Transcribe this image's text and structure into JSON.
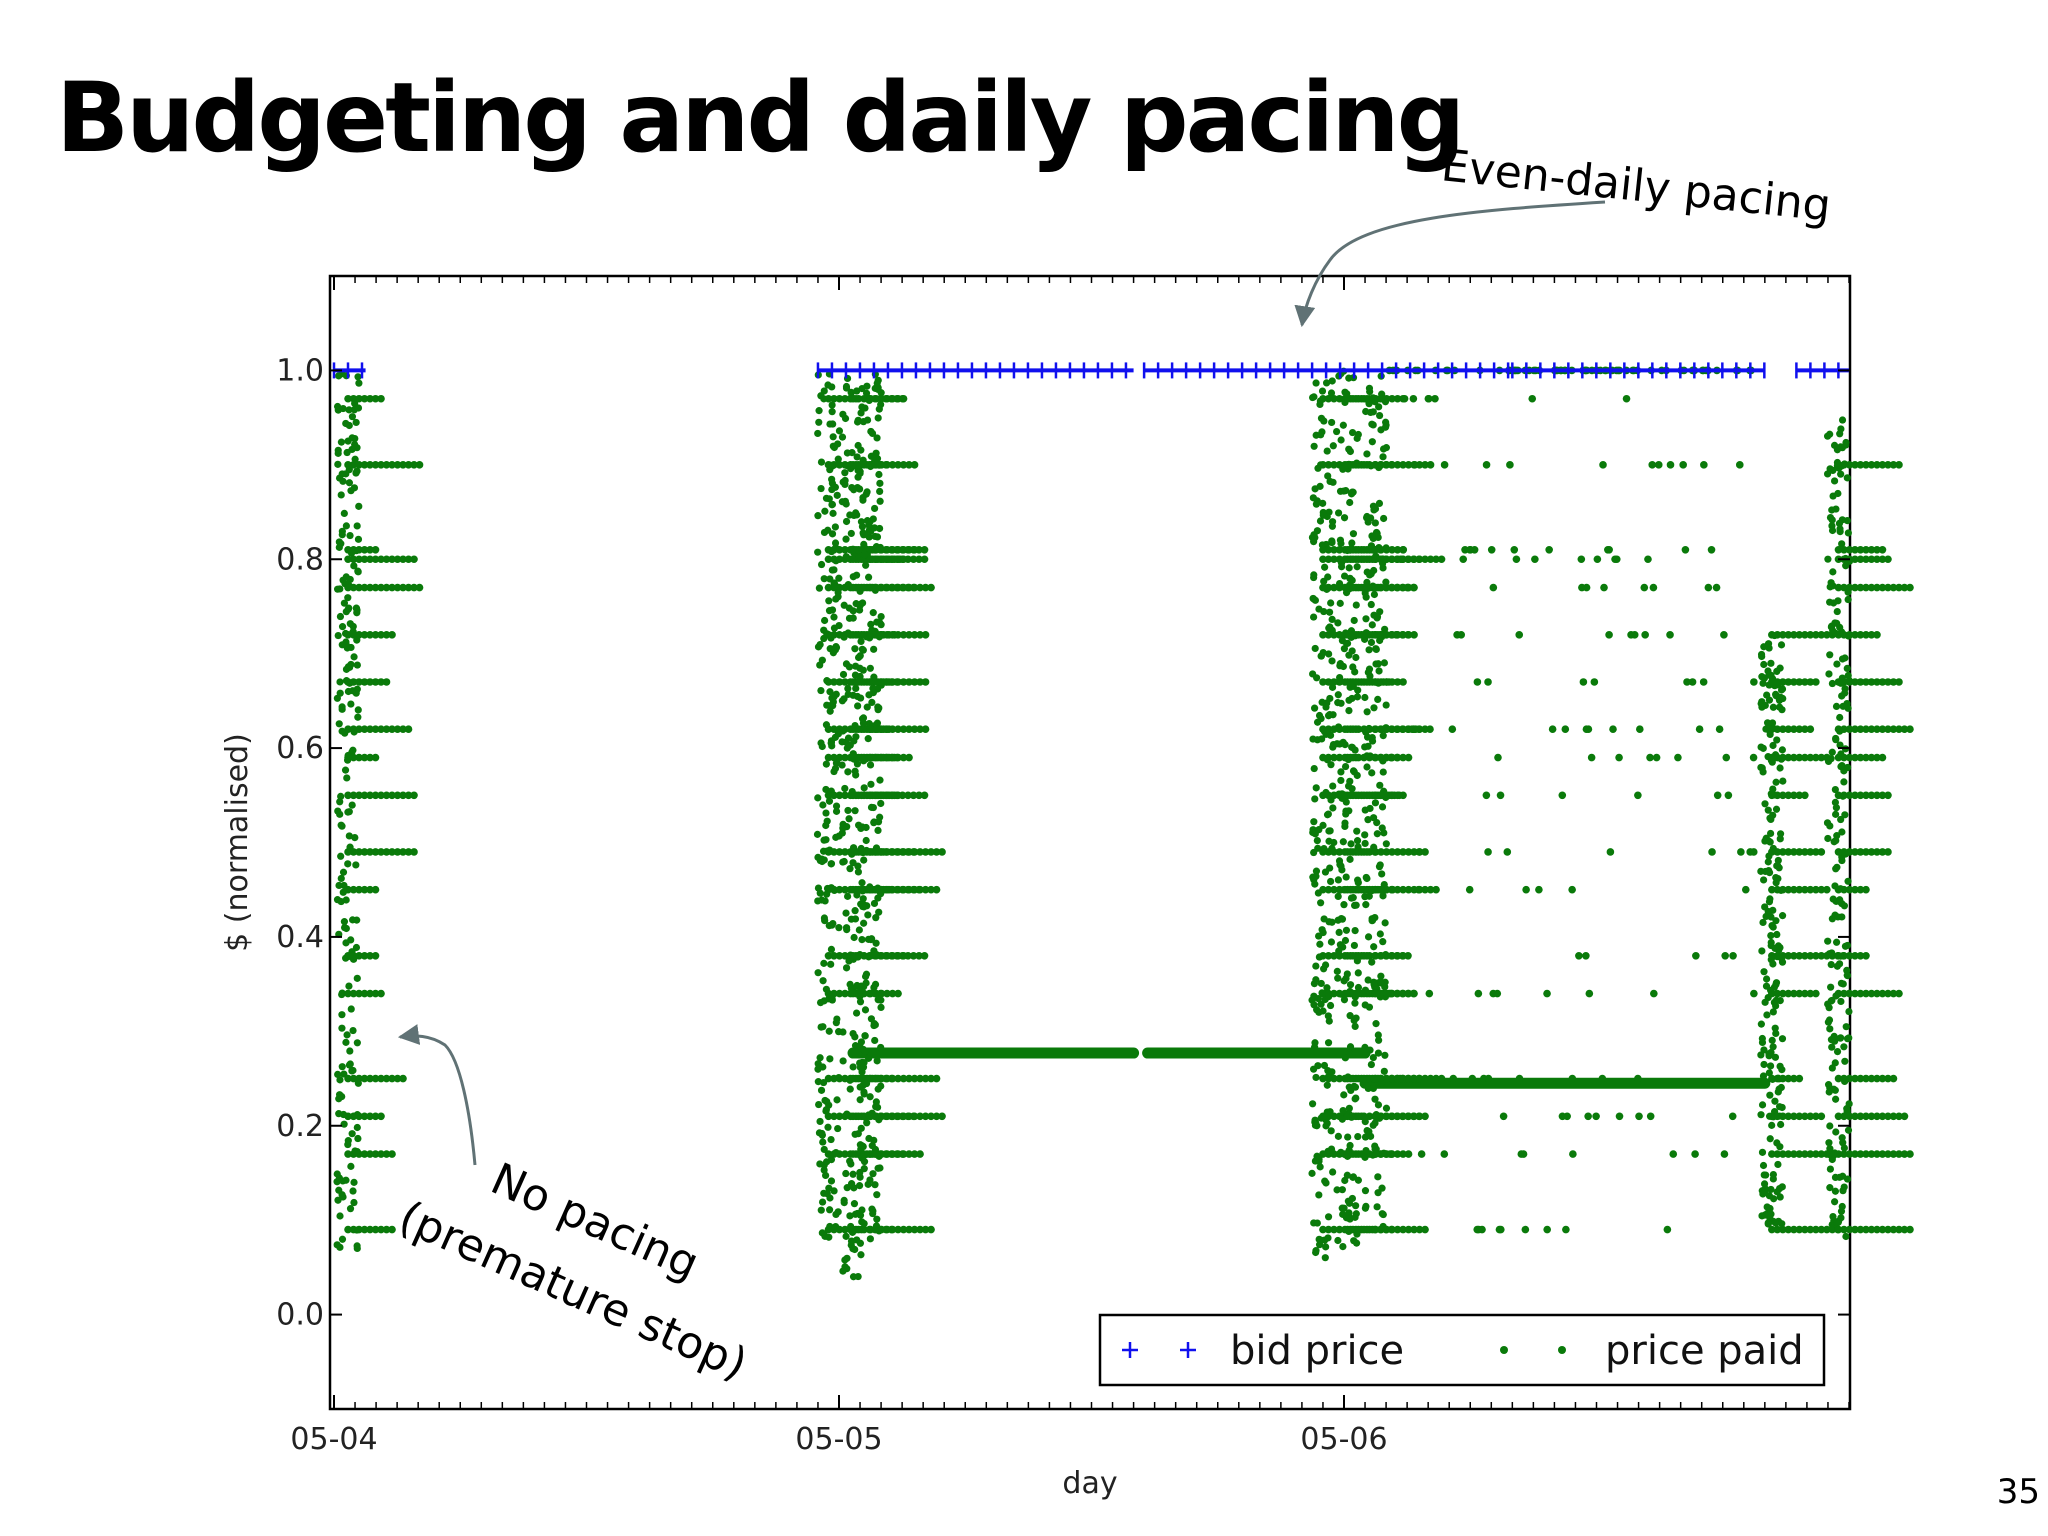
{
  "slide": {
    "title": "Budgeting and daily pacing",
    "page_number": "35"
  },
  "colors": {
    "bid_price": "#1010ee",
    "price_paid": "#0a7a0a",
    "annotation_arrow": "#607275"
  },
  "chart_data": {
    "type": "scatter",
    "title": "",
    "xlabel": "day",
    "ylabel": "$ (normalised)",
    "xlim": [
      "05-04 00:00",
      "05-07 00:00"
    ],
    "ylim": [
      -0.1,
      1.1
    ],
    "x_ticks": [
      "05-04",
      "05-05",
      "05-06"
    ],
    "y_ticks": [
      "0.0",
      "0.2",
      "0.4",
      "0.6",
      "0.8",
      "1.0"
    ],
    "grid": false,
    "legend_position": "bottom-right",
    "series": [
      {
        "name": "bid price",
        "marker": "+",
        "value": 1.0,
        "segments": [
          [
            "05-04 00:00",
            "05-04 01:30"
          ],
          [
            "05-04 23:00",
            "05-05 14:00"
          ],
          [
            "05-05 14:30",
            "05-06 08:00"
          ],
          [
            "05-06 08:00",
            "05-06 20:00"
          ],
          [
            "05-06 21:30",
            "05-07 00:00"
          ]
        ]
      },
      {
        "name": "price paid",
        "marker": "dot",
        "columns": [
          {
            "x": "05-04 00:40",
            "y_range": [
              0.07,
              1.0
            ]
          },
          {
            "x": "05-04 23:30",
            "y_range": [
              0.08,
              1.0
            ]
          },
          {
            "x": "05-05 00:40",
            "y_range": [
              0.04,
              1.0
            ]
          },
          {
            "x": "05-05 01:30",
            "y_range": [
              0.08,
              1.0
            ]
          },
          {
            "x": "05-05 23:00",
            "y_range": [
              0.06,
              1.0
            ]
          },
          {
            "x": "05-06 00:10",
            "y_range": [
              0.07,
              1.0
            ]
          },
          {
            "x": "05-06 01:30",
            "y_range": [
              0.09,
              1.0
            ]
          },
          {
            "x": "05-06 20:20",
            "y_range": [
              0.09,
              0.72
            ]
          },
          {
            "x": "05-06 23:30",
            "y_range": [
              0.08,
              0.95
            ]
          }
        ],
        "flat_lines": [
          {
            "y": 0.277,
            "x_range": [
              "05-05 00:40",
              "05-05 14:00"
            ]
          },
          {
            "y": 0.277,
            "x_range": [
              "05-05 14:40",
              "05-06 01:00"
            ]
          },
          {
            "y": 0.245,
            "x_range": [
              "05-06 01:00",
              "05-06 20:00"
            ]
          }
        ],
        "scattered_levels": [
          0.09,
          0.17,
          0.21,
          0.25,
          0.34,
          0.38,
          0.45,
          0.49,
          0.55,
          0.59,
          0.62,
          0.67,
          0.72,
          0.77,
          0.8,
          0.81,
          0.9,
          0.97
        ]
      }
    ],
    "annotations": [
      {
        "text_lines": [
          "Even-daily pacing"
        ]
      },
      {
        "text_lines": [
          "No pacing",
          "(premature stop)"
        ]
      }
    ]
  }
}
